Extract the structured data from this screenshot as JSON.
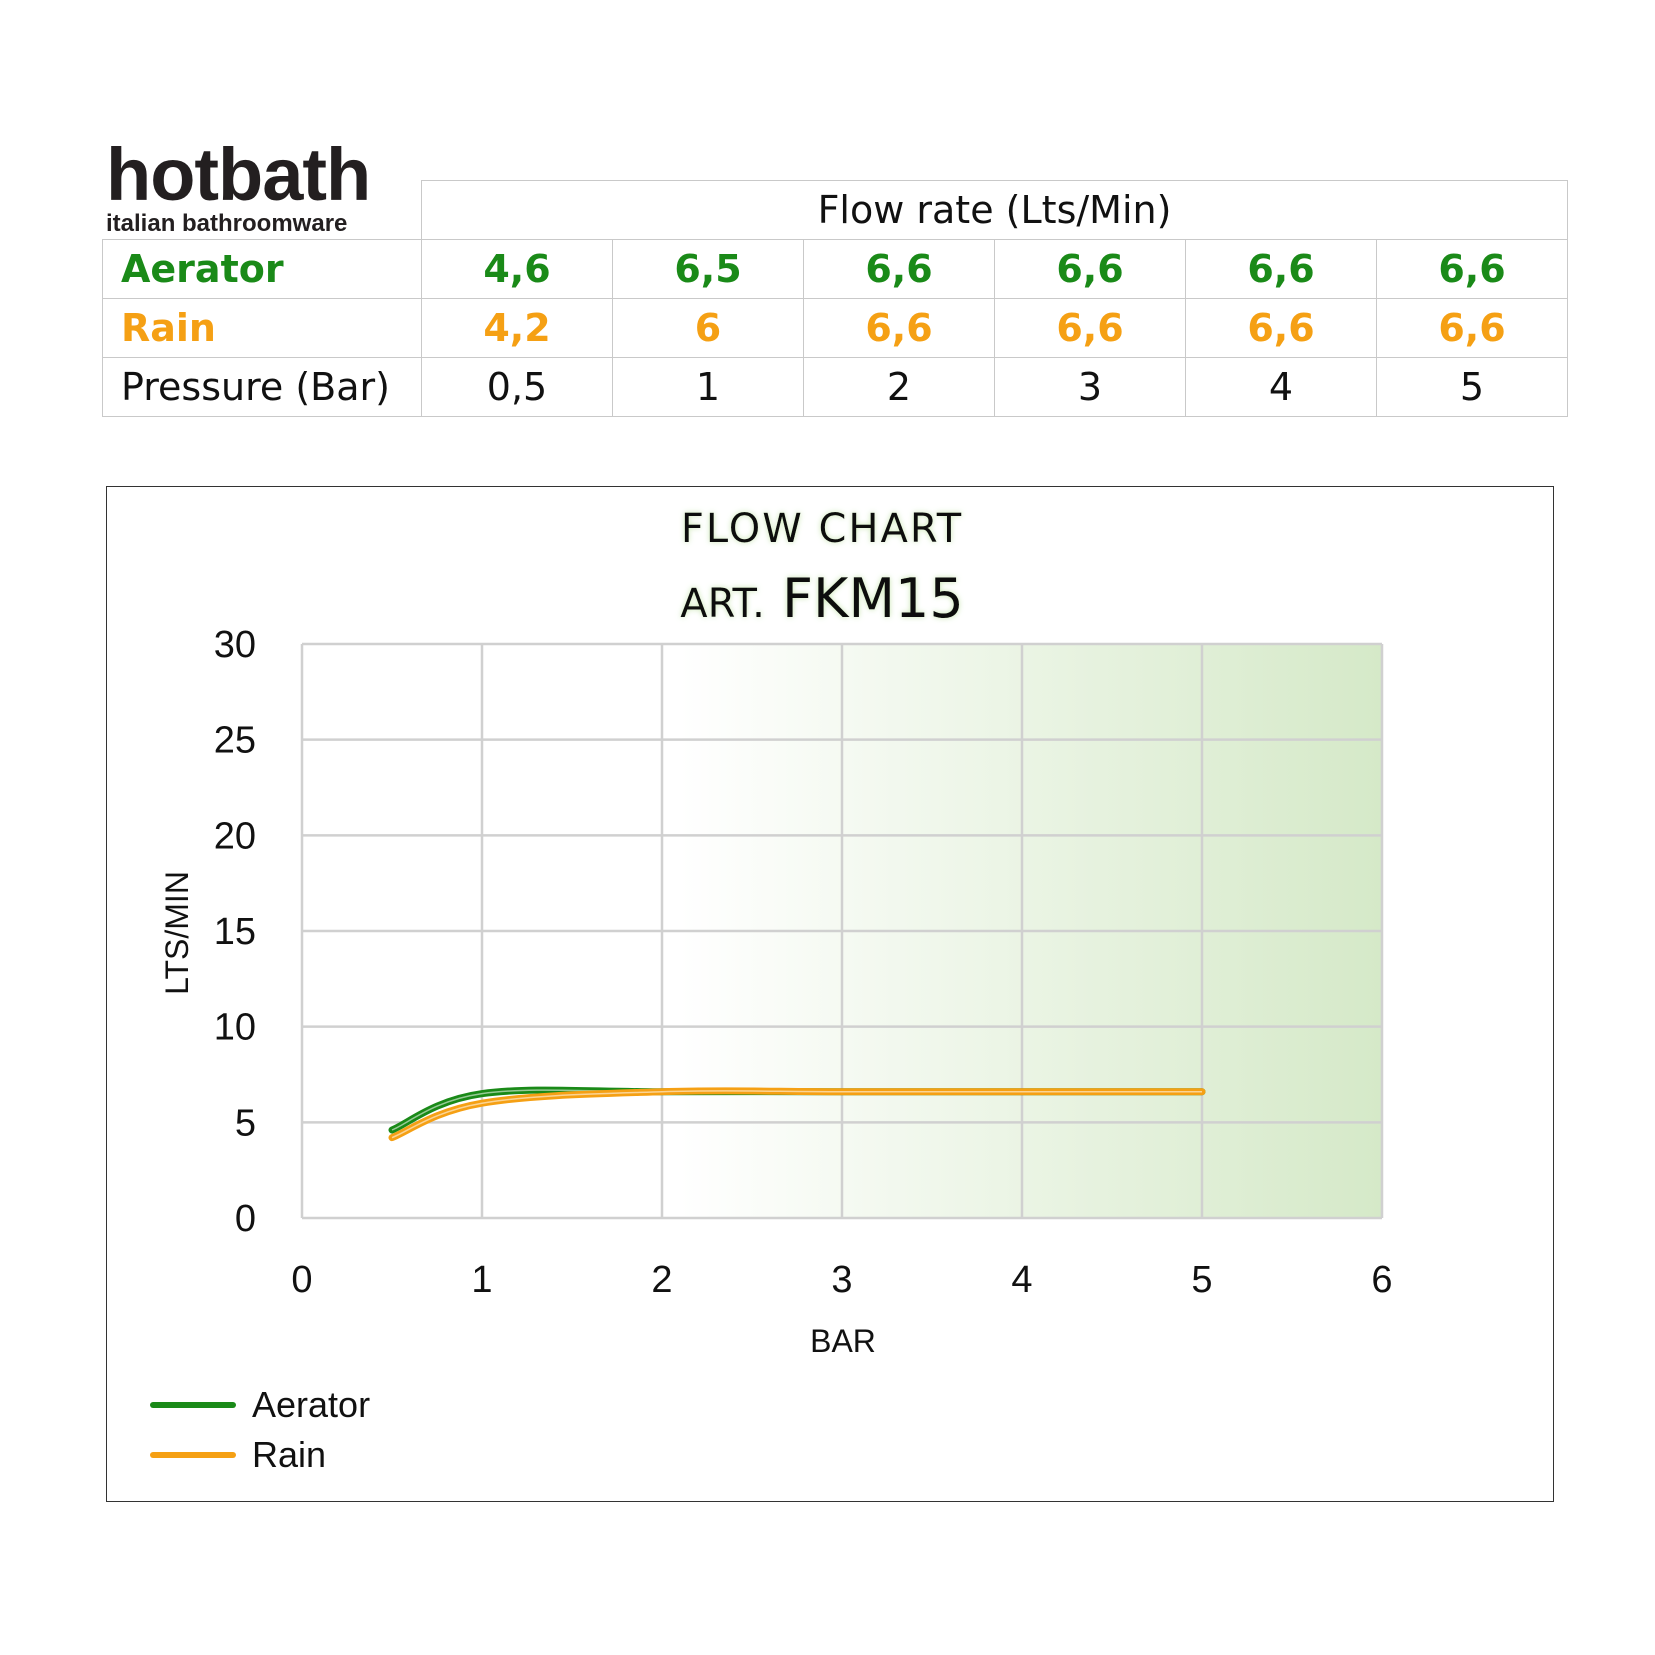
{
  "brand": {
    "name": "hotbath",
    "tagline": "italian bathroomware"
  },
  "table": {
    "header": "Flow rate (Lts/Min)",
    "rows": [
      {
        "label": "Aerator",
        "values": [
          "4,6",
          "6,5",
          "6,6",
          "6,6",
          "6,6",
          "6,6"
        ]
      },
      {
        "label": "Rain",
        "values": [
          "4,2",
          "6",
          "6,6",
          "6,6",
          "6,6",
          "6,6"
        ]
      },
      {
        "label": "Pressure (Bar)",
        "values": [
          "0,5",
          "1",
          "2",
          "3",
          "4",
          "5"
        ]
      }
    ]
  },
  "colors": {
    "aerator": "#1a8a18",
    "rain": "#f5a014",
    "grid": "#d0d0d0",
    "bg_gradient_end": "#d5e9c8"
  },
  "chart_data": {
    "type": "line",
    "title": "FLOW CHART",
    "subtitle_prefix": "ART.",
    "subtitle": "FKM15",
    "xlabel": "BAR",
    "ylabel": "LTS/MIN",
    "xlim": [
      0,
      6
    ],
    "ylim": [
      0,
      30
    ],
    "xticks": [
      "0",
      "1",
      "2",
      "3",
      "4",
      "5",
      "6"
    ],
    "yticks": [
      "0",
      "5",
      "10",
      "15",
      "20",
      "25",
      "30"
    ],
    "grid": true,
    "legend_position": "bottom-left",
    "series": [
      {
        "name": "Aerator",
        "x": [
          0.5,
          1,
          2,
          3,
          4,
          5
        ],
        "y": [
          4.6,
          6.5,
          6.6,
          6.6,
          6.6,
          6.6
        ]
      },
      {
        "name": "Rain",
        "x": [
          0.5,
          1,
          2,
          3,
          4,
          5
        ],
        "y": [
          4.2,
          6.0,
          6.6,
          6.6,
          6.6,
          6.6
        ]
      }
    ]
  }
}
